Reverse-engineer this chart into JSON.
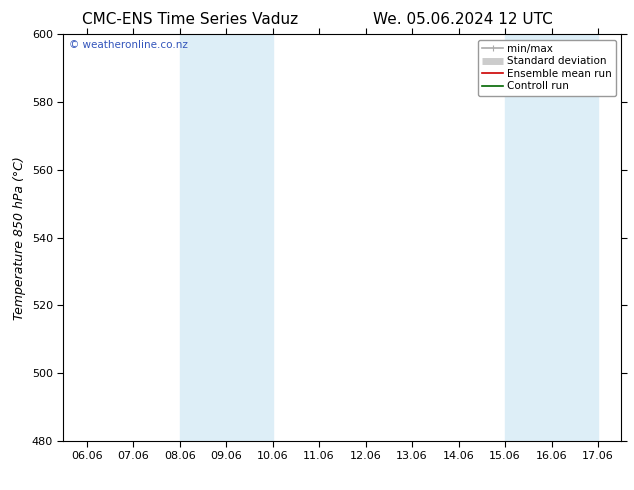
{
  "title_left": "CMC-ENS Time Series Vaduz",
  "title_right": "We. 05.06.2024 12 UTC",
  "ylabel": "Temperature 850 hPa (°C)",
  "ylim": [
    480,
    600
  ],
  "yticks": [
    480,
    500,
    520,
    540,
    560,
    580,
    600
  ],
  "xtick_labels": [
    "06.06",
    "07.06",
    "08.06",
    "09.06",
    "10.06",
    "11.06",
    "12.06",
    "13.06",
    "14.06",
    "15.06",
    "16.06",
    "17.06"
  ],
  "shaded_regions": [
    {
      "xmin": 2,
      "xmax": 4,
      "color": "#ddeef7"
    },
    {
      "xmin": 9,
      "xmax": 11,
      "color": "#ddeef7"
    }
  ],
  "watermark_text": "© weatheronline.co.nz",
  "watermark_color": "#3355bb",
  "legend_entries": [
    {
      "label": "min/max",
      "color": "#aaaaaa",
      "lw": 1.2
    },
    {
      "label": "Standard deviation",
      "color": "#cccccc",
      "lw": 5
    },
    {
      "label": "Ensemble mean run",
      "color": "#cc0000",
      "lw": 1.2
    },
    {
      "label": "Controll run",
      "color": "#006600",
      "lw": 1.2
    }
  ],
  "bg_color": "#ffffff",
  "title_fontsize": 11,
  "ylabel_fontsize": 9,
  "tick_fontsize": 8,
  "watermark_fontsize": 7.5,
  "legend_fontsize": 7.5
}
